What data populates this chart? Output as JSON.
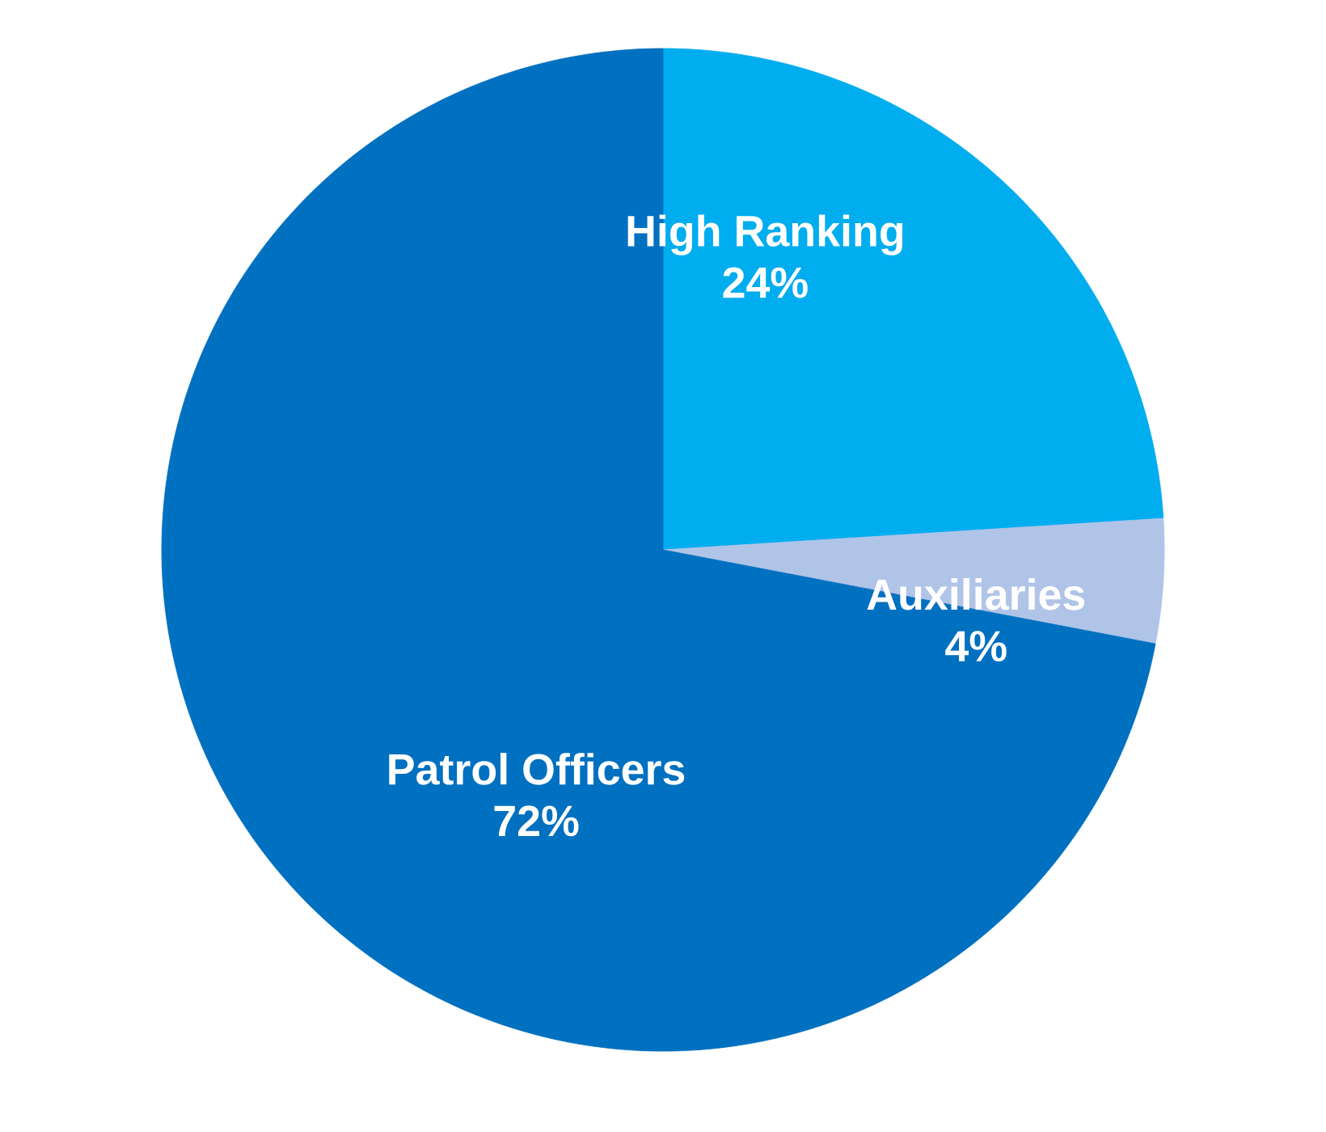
{
  "chart_data": {
    "type": "pie",
    "categories": [
      "High Ranking",
      "Auxiliaries",
      "Patrol Officers"
    ],
    "values": [
      24,
      4,
      72
    ],
    "value_labels": [
      "24%",
      "4%",
      "72%"
    ],
    "colors": [
      "#00adef",
      "#b0c4e8",
      "#0070c0"
    ]
  }
}
